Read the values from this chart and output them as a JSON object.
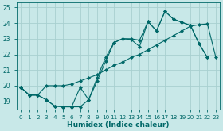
{
  "title": "",
  "xlabel": "Humidex (Indice chaleur)",
  "bg_color": "#c8e8e8",
  "grid_color": "#a8d0d0",
  "line_color": "#006868",
  "xlim": [
    -0.5,
    23.5
  ],
  "ylim": [
    18.5,
    25.3
  ],
  "yticks": [
    19,
    20,
    21,
    22,
    23,
    24,
    25
  ],
  "xticks": [
    0,
    1,
    2,
    3,
    4,
    5,
    6,
    7,
    8,
    9,
    10,
    11,
    12,
    13,
    14,
    15,
    16,
    17,
    18,
    19,
    20,
    21,
    22,
    23
  ],
  "line1_x": [
    0,
    1,
    2,
    3,
    4,
    5,
    6,
    7,
    8,
    9,
    10,
    11,
    12,
    13,
    14,
    15,
    16,
    17,
    18,
    19,
    20,
    21,
    22
  ],
  "line1_y": [
    19.9,
    19.4,
    19.4,
    19.1,
    18.7,
    18.65,
    18.65,
    18.65,
    19.1,
    20.3,
    21.55,
    22.75,
    23.0,
    22.95,
    22.5,
    24.1,
    23.5,
    24.75,
    24.25,
    24.05,
    23.85,
    22.7,
    21.8
  ],
  "line2_x": [
    0,
    1,
    2,
    3,
    4,
    5,
    6,
    7,
    8,
    9,
    10,
    11,
    12,
    13,
    14,
    15,
    16,
    17,
    18,
    19,
    20,
    21,
    22,
    23
  ],
  "line2_y": [
    19.9,
    19.4,
    19.4,
    20.0,
    20.0,
    20.0,
    20.1,
    20.3,
    20.5,
    20.7,
    21.0,
    21.3,
    21.5,
    21.8,
    22.0,
    22.3,
    22.6,
    22.9,
    23.2,
    23.5,
    23.8,
    23.9,
    23.95,
    21.8
  ],
  "line3_x": [
    0,
    1,
    2,
    3,
    4,
    5,
    6,
    7,
    8,
    9,
    10,
    11,
    12,
    13,
    14,
    15,
    16,
    17,
    18,
    19,
    20,
    21,
    22
  ],
  "line3_y": [
    19.9,
    19.4,
    19.4,
    19.1,
    18.7,
    18.65,
    18.65,
    19.9,
    19.1,
    20.5,
    21.8,
    22.75,
    23.0,
    23.0,
    22.9,
    24.1,
    23.5,
    24.75,
    24.25,
    24.05,
    23.85,
    22.7,
    21.8
  ]
}
